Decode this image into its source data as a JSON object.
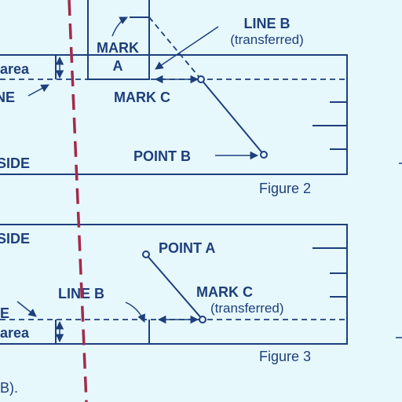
{
  "figure2": {
    "caption": "Figure 2",
    "label_area": "area",
    "label_line": "NE",
    "label_side": "SIDE",
    "mark_a_line1": "MARK",
    "mark_a_line2": "A",
    "line_b_line1": "LINE B",
    "line_b_line2": "(transferred)",
    "mark_c": "MARK C",
    "point_b": "POINT B"
  },
  "figure3": {
    "caption": "Figure 3",
    "label_side": "SIDE",
    "point_a": "POINT A",
    "line_b": "LINE B",
    "label_e": "E",
    "mark_c_line1": "MARK C",
    "mark_c_line2": "(transferred)",
    "label_area": "area"
  },
  "footer_text": "B).",
  "colors": {
    "background": "#e6f8fc",
    "ink": "#1e3f7c",
    "centerline": "#a32a4a"
  }
}
